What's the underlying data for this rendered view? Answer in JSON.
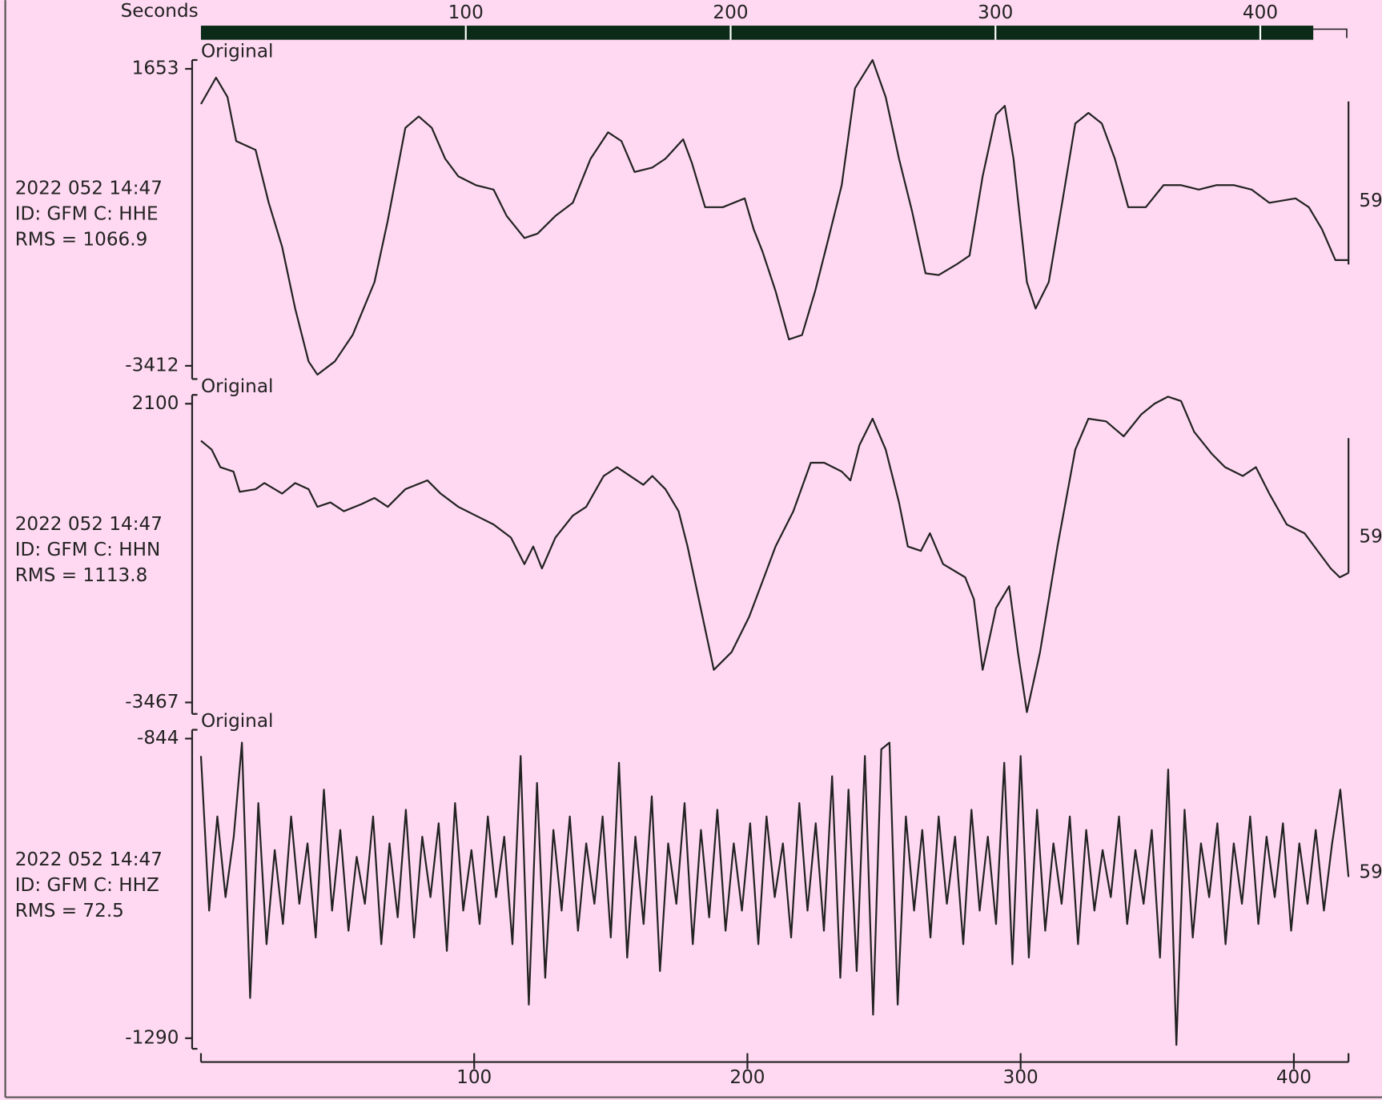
{
  "time_ruler": {
    "xlabel": "Seconds",
    "xlim": [
      0,
      420
    ],
    "xticks": [
      100,
      200,
      300,
      400
    ]
  },
  "chart_data": [
    {
      "type": "line",
      "title": "Original",
      "info": [
        "2022 052 14:47",
        "ID: GFM C: HHE",
        "RMS = 1066.9"
      ],
      "scale_label": "59",
      "color": "#222222",
      "xlim": [
        0,
        420
      ],
      "ylim": [
        -3412,
        1653
      ],
      "yticks": [
        1653,
        -3412
      ],
      "x": [
        0,
        5.5,
        9.7,
        12.9,
        20.0,
        24.8,
        29.7,
        34.5,
        39.4,
        42.6,
        49.0,
        55.5,
        63.5,
        68.4,
        74.8,
        79.7,
        84.5,
        89.4,
        94.2,
        100.6,
        107.1,
        111.9,
        118.4,
        123.2,
        129.7,
        136.1,
        142.6,
        149.0,
        153.9,
        158.7,
        165.2,
        170.0,
        176.5,
        179.7,
        184.5,
        191.0,
        199.0,
        202.3,
        205.5,
        210.3,
        215.2,
        220.0,
        224.8,
        229.7,
        234.5,
        239.4,
        245.8,
        250.6,
        255.5,
        260.3,
        265.2,
        270.0,
        276.5,
        281.3,
        286.1,
        291.0,
        294.2,
        297.4,
        302.3,
        305.5,
        310.3,
        315.2,
        320.0,
        324.8,
        329.7,
        334.5,
        339.4,
        345.8,
        352.3,
        358.7,
        365.2,
        371.6,
        378.1,
        384.5,
        391.0,
        400.6,
        405.5,
        410.3,
        415.2,
        420.0
      ],
      "values": [
        1052,
        1503,
        1172,
        421,
        270,
        -632,
        -1383,
        -2435,
        -3337,
        -3562,
        -3337,
        -2886,
        -1984,
        -932,
        646,
        841,
        646,
        120,
        -181,
        -331,
        -406,
        -857,
        -1233,
        -1158,
        -857,
        -632,
        120,
        571,
        421,
        -106,
        -30,
        120,
        451,
        45,
        -707,
        -707,
        -556,
        -1082,
        -1458,
        -2135,
        -2961,
        -2886,
        -2135,
        -1233,
        -331,
        1322,
        1803,
        1172,
        120,
        -782,
        -1834,
        -1864,
        -1684,
        -1533,
        -181,
        871,
        1022,
        120,
        -1984,
        -2435,
        -1984,
        -632,
        721,
        901,
        721,
        120,
        -707,
        -707,
        -331,
        -331,
        -406,
        -331,
        -331,
        -406,
        -632,
        -556,
        -707,
        -1082,
        -1609,
        -1609
      ]
    },
    {
      "type": "line",
      "title": "Original",
      "info": [
        "2022 052 14:47",
        "ID: GFM C: HHN",
        "RMS = 1113.8"
      ],
      "scale_label": "59",
      "color": "#222222",
      "xlim": [
        0,
        420
      ],
      "ylim": [
        -3467,
        2100
      ],
      "yticks": [
        2100,
        -3467
      ],
      "x": [
        0,
        3.9,
        7.1,
        11.9,
        14.2,
        20.0,
        23.2,
        29.7,
        34.5,
        39.4,
        42.6,
        47.4,
        52.3,
        58.7,
        63.5,
        68.4,
        74.8,
        82.9,
        87.7,
        94.2,
        100.6,
        107.1,
        113.5,
        118.4,
        121.6,
        124.8,
        129.7,
        136.1,
        141.0,
        147.4,
        152.3,
        157.1,
        161.9,
        165.2,
        170.0,
        174.8,
        178.1,
        182.9,
        187.7,
        194.2,
        200.6,
        205.5,
        210.3,
        216.8,
        223.2,
        228.1,
        234.5,
        237.7,
        241.0,
        245.8,
        250.6,
        255.5,
        258.7,
        263.5,
        266.8,
        271.6,
        279.7,
        282.9,
        286.1,
        291.0,
        295.8,
        299.0,
        302.3,
        307.1,
        313.5,
        320.0,
        324.8,
        331.3,
        337.7,
        344.2,
        349.0,
        353.9,
        358.7,
        363.5,
        370.0,
        374.8,
        381.3,
        386.1,
        391.0,
        397.4,
        403.9,
        408.7,
        413.5,
        416.8,
        420.0
      ],
      "values": [
        1410,
        1246,
        918,
        836,
        458,
        507,
        622,
        425,
        622,
        507,
        179,
        261,
        97,
        228,
        343,
        179,
        507,
        671,
        425,
        179,
        15,
        -150,
        -396,
        -888,
        -560,
        -971,
        -396,
        15,
        179,
        754,
        918,
        754,
        589,
        754,
        507,
        97,
        -560,
        -1709,
        -2859,
        -2530,
        -1874,
        -1217,
        -560,
        97,
        1000,
        1000,
        836,
        671,
        1328,
        1821,
        1246,
        261,
        -560,
        -642,
        -314,
        -888,
        -1135,
        -1545,
        -2859,
        -1709,
        -1299,
        -2530,
        -3647,
        -2530,
        -560,
        1246,
        1821,
        1772,
        1492,
        1903,
        2100,
        2231,
        2149,
        1575,
        1164,
        918,
        754,
        918,
        425,
        -150,
        -314,
        -642,
        -971,
        -1135,
        -1053
      ]
    },
    {
      "type": "line",
      "title": "Original",
      "info": [
        "2022 052 14:47",
        "ID: GFM C: HHZ",
        "RMS = 72.5"
      ],
      "scale_label": "59",
      "color": "#222222",
      "xlim": [
        0,
        420
      ],
      "ylim": [
        -1290,
        -844
      ],
      "yticks": [
        -844,
        -1290
      ],
      "xticks": [
        100,
        200,
        300,
        400
      ],
      "x": [
        0,
        3,
        6,
        9,
        12,
        15,
        18,
        21,
        24,
        27,
        30,
        33,
        36,
        39,
        42,
        45,
        48,
        51,
        54,
        57,
        60,
        63,
        66,
        69,
        72,
        75,
        78,
        81,
        84,
        87,
        90,
        93,
        96,
        99,
        102,
        105,
        108,
        111,
        114,
        117,
        120,
        123,
        126,
        129,
        132,
        135,
        138,
        141,
        144,
        147,
        150,
        153,
        156,
        159,
        162,
        165,
        168,
        171,
        174,
        177,
        180,
        183,
        186,
        189,
        192,
        195,
        198,
        201,
        204,
        207,
        210,
        213,
        216,
        219,
        222,
        225,
        228,
        231,
        234,
        237,
        240,
        243,
        246,
        249,
        252,
        255,
        258,
        261,
        264,
        267,
        270,
        273,
        276,
        279,
        282,
        285,
        288,
        291,
        294,
        297,
        300,
        303,
        306,
        309,
        312,
        315,
        318,
        321,
        324,
        327,
        330,
        333,
        336,
        339,
        342,
        345,
        348,
        351,
        354,
        357,
        360,
        363,
        366,
        369,
        372,
        375,
        378,
        381,
        384,
        387,
        390,
        393,
        396,
        399,
        402,
        405,
        408,
        411,
        414,
        417,
        420
      ],
      "values": [
        -870,
        -1100,
        -960,
        -1080,
        -990,
        -850,
        -1230,
        -940,
        -1150,
        -1010,
        -1120,
        -960,
        -1090,
        -1000,
        -1140,
        -920,
        -1100,
        -980,
        -1130,
        -1020,
        -1090,
        -960,
        -1150,
        -1000,
        -1110,
        -950,
        -1140,
        -990,
        -1080,
        -970,
        -1160,
        -940,
        -1100,
        -1010,
        -1120,
        -960,
        -1080,
        -990,
        -1150,
        -870,
        -1240,
        -910,
        -1200,
        -980,
        -1100,
        -960,
        -1130,
        -1000,
        -1090,
        -960,
        -1140,
        -880,
        -1170,
        -990,
        -1120,
        -930,
        -1190,
        -1000,
        -1090,
        -940,
        -1150,
        -980,
        -1110,
        -950,
        -1130,
        -1000,
        -1100,
        -970,
        -1150,
        -960,
        -1080,
        -1000,
        -1140,
        -940,
        -1100,
        -970,
        -1130,
        -900,
        -1200,
        -920,
        -1190,
        -870,
        -1255,
        -860,
        -850,
        -1240,
        -960,
        -1100,
        -980,
        -1140,
        -960,
        -1090,
        -990,
        -1150,
        -950,
        -1100,
        -990,
        -1120,
        -880,
        -1180,
        -870,
        -1170,
        -950,
        -1130,
        -1000,
        -1090,
        -960,
        -1150,
        -980,
        -1100,
        -1010,
        -1080,
        -960,
        -1120,
        -1010,
        -1090,
        -980,
        -1170,
        -890,
        -1300,
        -950,
        -1140,
        -1000,
        -1080,
        -970,
        -1150,
        -1000,
        -1090,
        -960,
        -1120,
        -990,
        -1080,
        -970,
        -1130,
        -1000,
        -1090,
        -980,
        -1100,
        -1000,
        -920,
        -1050
      ]
    }
  ]
}
